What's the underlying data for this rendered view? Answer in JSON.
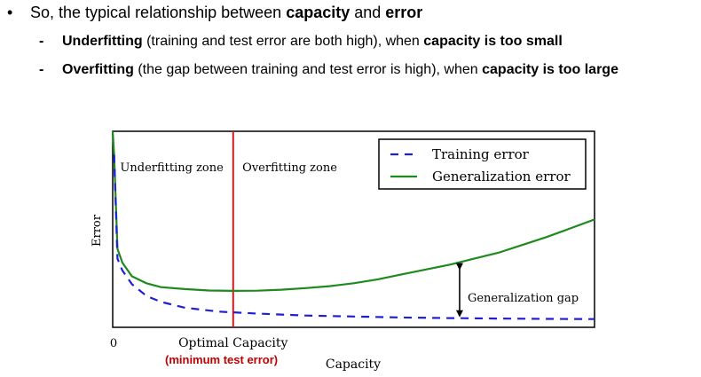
{
  "bullets": {
    "main": {
      "text_a": "So, the typical relationship between ",
      "bold_a": "capacity",
      "text_b": " and ",
      "bold_b": "error"
    },
    "underfitting": {
      "bold_a": "Underfitting",
      "text_a": " (training and test error are both high), when ",
      "bold_b": "capacity is too small"
    },
    "overfitting": {
      "bold_a": "Overfitting",
      "text_a": " (the gap between training and test error is high), when ",
      "bold_b": "capacity is too large"
    }
  },
  "annotation": {
    "min_test_error": "(minimum test error)"
  },
  "colors": {
    "training": "#1f1fd6",
    "generalization": "#1e8a1e",
    "optimal_line": "#d01818",
    "annotation_text": "#c00000"
  },
  "chart_data": {
    "type": "line",
    "xlabel": "Capacity",
    "ylabel": "Error",
    "x_tick_labels": [
      "0"
    ],
    "xlim": [
      0,
      100
    ],
    "ylim": [
      0,
      100
    ],
    "grid": false,
    "legend_position": "top-right",
    "series": [
      {
        "name": "Training error",
        "style": "dashed",
        "x": [
          0.3,
          1,
          2,
          4,
          7,
          10,
          15,
          22,
          30,
          40,
          50,
          60,
          70,
          80,
          90,
          100
        ],
        "y": [
          88,
          35,
          29,
          22,
          16,
          13,
          10,
          8,
          7,
          6,
          5.5,
          5,
          4.7,
          4.5,
          4.3,
          4.2
        ]
      },
      {
        "name": "Generalization error",
        "style": "solid",
        "x": [
          0,
          0.3,
          1,
          2,
          4,
          7,
          10,
          15,
          20,
          25,
          30,
          35,
          40,
          45,
          50,
          55,
          60,
          65,
          70,
          75,
          80,
          85,
          90,
          95,
          100
        ],
        "y": [
          100,
          88,
          40,
          33,
          26,
          22.5,
          20.5,
          19.5,
          18.8,
          18.6,
          18.7,
          19.2,
          20,
          21,
          22.5,
          24.5,
          27,
          29.5,
          32,
          35,
          38,
          42,
          46,
          50.5,
          55
        ]
      }
    ],
    "annotations": [
      {
        "text": "Underfitting zone",
        "x": 1
      },
      {
        "text": "Overfitting zone",
        "x": 26
      },
      {
        "text": "Generalization gap",
        "x": 72
      },
      {
        "text": "Optimal Capacity",
        "x": 25
      }
    ],
    "optimal_capacity_x": 25,
    "gap_x": 72
  }
}
